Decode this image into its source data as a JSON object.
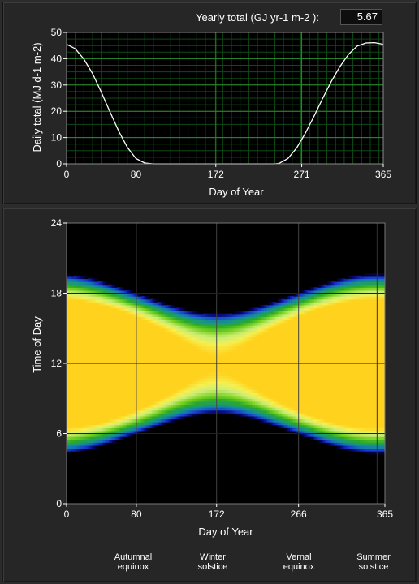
{
  "header": {
    "yearly_label": "Yearly total (GJ yr-1 m-2  ):",
    "yearly_value": "5.67"
  },
  "colors": {
    "panel_bg": "#262626",
    "plot_bg": "#000000",
    "grid_major": "#2e8b2e",
    "grid_minor": "#0f4a14",
    "line": "#ffffff"
  },
  "chart_data": [
    {
      "type": "line",
      "xlabel": "Day of Year",
      "ylabel": "Daily total (MJ  d-1 m-2)",
      "xlim": [
        0,
        365
      ],
      "ylim": [
        0,
        50
      ],
      "xticks": [
        0,
        80,
        172,
        271,
        365
      ],
      "yticks": [
        0,
        10,
        20,
        30,
        40,
        50
      ],
      "grid": true,
      "x": [
        0,
        10,
        20,
        30,
        40,
        50,
        60,
        70,
        80,
        90,
        100,
        105,
        120,
        140,
        160,
        172,
        180,
        200,
        220,
        240,
        245,
        255,
        265,
        275,
        285,
        295,
        305,
        315,
        325,
        335,
        345,
        355,
        365
      ],
      "y": [
        45.5,
        43.8,
        39.8,
        34.3,
        27.3,
        19.8,
        12.5,
        6.3,
        2.0,
        0.3,
        0.0,
        0.0,
        0.0,
        0.0,
        0.0,
        0.0,
        0.0,
        0.0,
        0.0,
        0.0,
        0.2,
        2.0,
        6.0,
        11.5,
        18.0,
        24.8,
        31.3,
        37.0,
        41.7,
        44.8,
        46.0,
        46.1,
        45.5
      ]
    },
    {
      "type": "heatmap",
      "xlabel": "Day of Year",
      "ylabel": "Time of Day",
      "xlim": [
        0,
        365
      ],
      "ylim": [
        0,
        24
      ],
      "xticks": [
        0,
        80,
        172,
        266,
        365
      ],
      "yticks": [
        0,
        6,
        12,
        18,
        24
      ],
      "colorscale": [
        "#000000",
        "#05056e",
        "#1a35d0",
        "#1478b4",
        "#1a9a7a",
        "#2aa82a",
        "#7ad21e",
        "#c8ec78",
        "#f5f050",
        "#ffd21e"
      ],
      "annotations": [
        {
          "x": 80,
          "text": "Autumnal\nequinox"
        },
        {
          "x": 172,
          "text": "Winter\nsolstice"
        },
        {
          "x": 266,
          "text": "Vernal\nequinox"
        },
        {
          "x": 355,
          "text": "Summer\nsolstice"
        }
      ]
    }
  ]
}
